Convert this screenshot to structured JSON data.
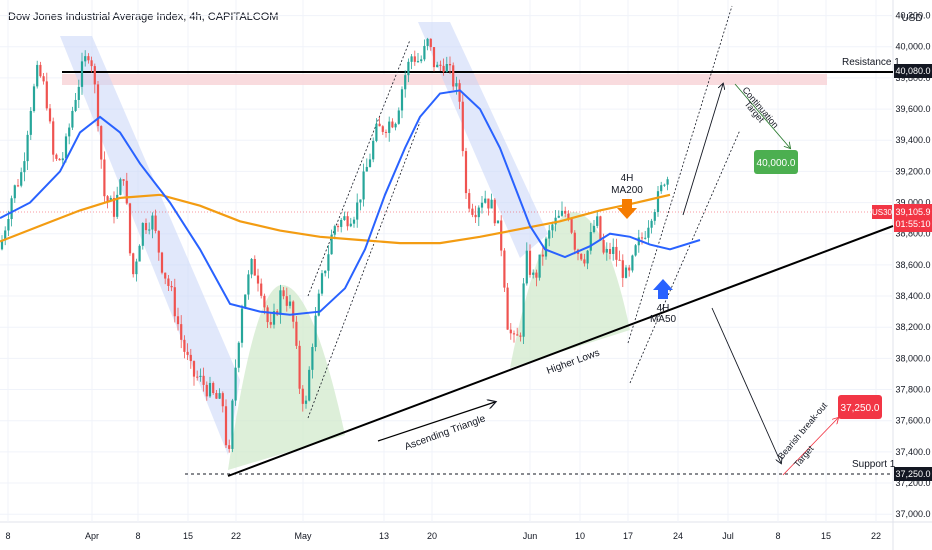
{
  "header": {
    "title": "Dow Jones Industrial Average Index, 4h, CAPITALCOM",
    "currency": "USD"
  },
  "colors": {
    "bull": "#26a69a",
    "bear": "#ef5350",
    "ma50": "#2962ff",
    "ma200": "#f39c12",
    "channel_fill": "#c9d6f7",
    "hump_fill": "#cfe8c9",
    "resistance_zone": "#f8d7da",
    "green_badge": "#4caf50",
    "red_badge": "#f23645",
    "black_badge": "#131722"
  },
  "chart_data": {
    "type": "candlestick",
    "symbol": "US30",
    "timeframe": "4h",
    "x_tick_labels": [
      "8",
      "Apr",
      "8",
      "15",
      "22",
      "May",
      "13",
      "20",
      "Jun",
      "10",
      "17",
      "24",
      "Jul",
      "8",
      "15",
      "22"
    ],
    "y_tick_labels": [
      37000,
      37200,
      37400,
      37600,
      37800,
      38000,
      38200,
      38400,
      38600,
      38800,
      39000,
      39200,
      39400,
      39600,
      39800,
      40000,
      40200
    ],
    "ylim": [
      36950,
      40300
    ],
    "price_path": [
      [
        0,
        38700
      ],
      [
        12,
        39050
      ],
      [
        22,
        39200
      ],
      [
        30,
        39600
      ],
      [
        38,
        39850
      ],
      [
        46,
        39700
      ],
      [
        54,
        39250
      ],
      [
        64,
        39300
      ],
      [
        74,
        39650
      ],
      [
        82,
        39850
      ],
      [
        90,
        40000
      ],
      [
        98,
        39550
      ],
      [
        104,
        39050
      ],
      [
        114,
        38950
      ],
      [
        124,
        39200
      ],
      [
        132,
        38500
      ],
      [
        142,
        38850
      ],
      [
        152,
        38900
      ],
      [
        162,
        38600
      ],
      [
        172,
        38400
      ],
      [
        182,
        38100
      ],
      [
        192,
        37900
      ],
      [
        202,
        37850
      ],
      [
        214,
        37750
      ],
      [
        224,
        37700
      ],
      [
        228,
        37250
      ],
      [
        234,
        37850
      ],
      [
        242,
        38350
      ],
      [
        252,
        38600
      ],
      [
        260,
        38500
      ],
      [
        270,
        38150
      ],
      [
        282,
        38450
      ],
      [
        292,
        38300
      ],
      [
        300,
        37800
      ],
      [
        306,
        37700
      ],
      [
        312,
        38100
      ],
      [
        322,
        38500
      ],
      [
        334,
        38850
      ],
      [
        346,
        38900
      ],
      [
        356,
        38950
      ],
      [
        366,
        39200
      ],
      [
        376,
        39450
      ],
      [
        386,
        39500
      ],
      [
        396,
        39550
      ],
      [
        404,
        39800
      ],
      [
        412,
        39950
      ],
      [
        420,
        39900
      ],
      [
        428,
        40030
      ],
      [
        436,
        39850
      ],
      [
        444,
        39900
      ],
      [
        452,
        39800
      ],
      [
        460,
        39650
      ],
      [
        466,
        39050
      ],
      [
        474,
        38950
      ],
      [
        484,
        39050
      ],
      [
        494,
        38950
      ],
      [
        502,
        38700
      ],
      [
        508,
        38200
      ],
      [
        514,
        38100
      ],
      [
        520,
        38150
      ],
      [
        526,
        38650
      ],
      [
        534,
        38500
      ],
      [
        544,
        38700
      ],
      [
        552,
        38850
      ],
      [
        560,
        38900
      ],
      [
        568,
        38950
      ],
      [
        576,
        38700
      ],
      [
        586,
        38650
      ],
      [
        596,
        38900
      ],
      [
        604,
        38650
      ],
      [
        612,
        38700
      ],
      [
        620,
        38600
      ],
      [
        628,
        38500
      ],
      [
        636,
        38700
      ],
      [
        644,
        38800
      ],
      [
        652,
        38950
      ],
      [
        660,
        39050
      ],
      [
        666,
        39200
      ],
      [
        670,
        39105
      ]
    ],
    "series": [
      {
        "name": "4H MA50",
        "path": [
          [
            0,
            38900
          ],
          [
            30,
            39000
          ],
          [
            60,
            39200
          ],
          [
            80,
            39450
          ],
          [
            100,
            39550
          ],
          [
            120,
            39450
          ],
          [
            140,
            39250
          ],
          [
            170,
            39000
          ],
          [
            200,
            38700
          ],
          [
            230,
            38350
          ],
          [
            260,
            38300
          ],
          [
            290,
            38280
          ],
          [
            320,
            38300
          ],
          [
            345,
            38450
          ],
          [
            365,
            38700
          ],
          [
            385,
            39050
          ],
          [
            405,
            39350
          ],
          [
            420,
            39550
          ],
          [
            440,
            39700
          ],
          [
            460,
            39720
          ],
          [
            480,
            39600
          ],
          [
            500,
            39350
          ],
          [
            515,
            39100
          ],
          [
            530,
            38850
          ],
          [
            545,
            38700
          ],
          [
            565,
            38650
          ],
          [
            590,
            38720
          ],
          [
            610,
            38800
          ],
          [
            630,
            38780
          ],
          [
            650,
            38730
          ],
          [
            670,
            38700
          ],
          [
            700,
            38760
          ]
        ]
      },
      {
        "name": "4H MA200",
        "path": [
          [
            0,
            38750
          ],
          [
            40,
            38850
          ],
          [
            80,
            38950
          ],
          [
            120,
            39030
          ],
          [
            160,
            39050
          ],
          [
            200,
            38980
          ],
          [
            240,
            38880
          ],
          [
            280,
            38820
          ],
          [
            320,
            38780
          ],
          [
            360,
            38760
          ],
          [
            400,
            38740
          ],
          [
            440,
            38740
          ],
          [
            480,
            38780
          ],
          [
            520,
            38830
          ],
          [
            560,
            38880
          ],
          [
            600,
            38950
          ],
          [
            630,
            38990
          ],
          [
            650,
            39020
          ],
          [
            670,
            39050
          ]
        ]
      }
    ],
    "annotations": [
      {
        "text": "Resistance 1",
        "value": 40080,
        "badge": "40,080.0"
      },
      {
        "text": "Support 1",
        "value": 37250,
        "badge": "37,250.0"
      },
      {
        "text": "Continuation Target",
        "value": 40000,
        "badge": "40,000.0"
      },
      {
        "text": "Bearish break-out Target",
        "value": 37250,
        "badge": "37,250.0"
      },
      {
        "text": "Ascending Triangle"
      },
      {
        "text": "Higher Lows"
      }
    ],
    "current_price": {
      "symbol": "US30",
      "value": "39,105.9",
      "countdown": "01:55:10"
    }
  },
  "labels": {
    "resistance": "Resistance 1",
    "support": "Support 1",
    "resistance_price": "40,080.0",
    "support_price": "37,250.0",
    "current_symbol": "US30",
    "current_price": "39,105.9",
    "countdown": "01:55:10",
    "continuation_line1": "Continuation",
    "continuation_line2": "Target",
    "continuation_badge": "40,000.0",
    "bearish_line1": "Bearish break-out",
    "bearish_line2": "Target",
    "bearish_badge": "37,250.0",
    "ma200_line1": "4H",
    "ma200_line2": "MA200",
    "ma50_line1": "4H",
    "ma50_line2": "MA50",
    "triangle": "Ascending Triangle",
    "higher_lows": "Higher Lows"
  }
}
